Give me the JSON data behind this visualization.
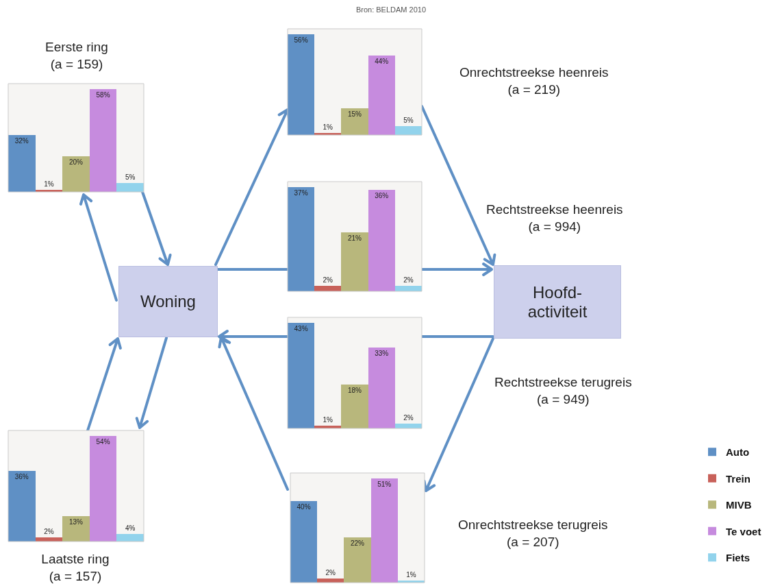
{
  "chart_data": [
    {
      "type": "bar",
      "title": "Eerste ring\n(a = 159)",
      "categories": [
        null
      ],
      "series": [
        {
          "color": "#5f90c5",
          "values": [
            32
          ],
          "value_labels": [
            "32%"
          ]
        },
        {
          "color": "#c8615a",
          "values": [
            1
          ],
          "value_labels": [
            "1%"
          ]
        },
        {
          "color": "#b8b77c",
          "values": [
            20
          ],
          "value_labels": [
            "20%"
          ]
        },
        {
          "color": "#c68bde",
          "values": [
            58
          ],
          "value_labels": [
            "58%"
          ]
        },
        {
          "color": "#92d3ec",
          "values": [
            5
          ],
          "value_labels": [
            "5%"
          ]
        }
      ]
    },
    {
      "type": "bar",
      "annotations": [
        "Onrechtstreekse heenreis\n(a = 219)"
      ],
      "categories": [
        null
      ],
      "series": [
        {
          "color": "#5f90c5",
          "values": [
            56
          ],
          "value_labels": [
            "56%"
          ]
        },
        {
          "color": "#c8615a",
          "values": [
            1
          ],
          "value_labels": [
            "1%"
          ]
        },
        {
          "color": "#b8b77c",
          "values": [
            15
          ],
          "value_labels": [
            "15%"
          ]
        },
        {
          "color": "#c68bde",
          "values": [
            44
          ],
          "value_labels": [
            "44%"
          ]
        },
        {
          "color": "#92d3ec",
          "values": [
            5
          ],
          "value_labels": [
            "5%"
          ]
        }
      ]
    },
    {
      "type": "bar",
      "annotations": [
        "Rechtstreekse heenreis\n(a = 994)"
      ],
      "categories": [
        null
      ],
      "series": [
        {
          "color": "#5f90c5",
          "values": [
            37
          ],
          "value_labels": [
            "37%"
          ]
        },
        {
          "color": "#c8615a",
          "values": [
            2
          ],
          "value_labels": [
            "2%"
          ]
        },
        {
          "color": "#b8b77c",
          "values": [
            21
          ],
          "value_labels": [
            "21%"
          ]
        },
        {
          "color": "#c68bde",
          "values": [
            36
          ],
          "value_labels": [
            "36%"
          ]
        },
        {
          "color": "#92d3ec",
          "values": [
            2
          ],
          "value_labels": [
            "2%"
          ]
        }
      ]
    },
    {
      "type": "bar",
      "annotations": [
        "Rechtstreekse terugreis\n(a = 949)"
      ],
      "categories": [
        null
      ],
      "series": [
        {
          "color": "#5f90c5",
          "values": [
            43
          ],
          "value_labels": [
            "43%"
          ]
        },
        {
          "color": "#c8615a",
          "values": [
            1
          ],
          "value_labels": [
            "1%"
          ]
        },
        {
          "color": "#b8b77c",
          "values": [
            18
          ],
          "value_labels": [
            "18%"
          ]
        },
        {
          "color": "#c68bde",
          "values": [
            33
          ],
          "value_labels": [
            "33%"
          ]
        },
        {
          "color": "#92d3ec",
          "values": [
            2
          ],
          "value_labels": [
            "2%"
          ]
        }
      ]
    },
    {
      "type": "bar",
      "title": "Laatste ring\n(a = 157)",
      "categories": [
        null
      ],
      "series": [
        {
          "color": "#5f90c5",
          "values": [
            36
          ],
          "value_labels": [
            "36%"
          ]
        },
        {
          "color": "#c8615a",
          "values": [
            2
          ],
          "value_labels": [
            "2%"
          ]
        },
        {
          "color": "#b8b77c",
          "values": [
            13
          ],
          "value_labels": [
            "13%"
          ]
        },
        {
          "color": "#c68bde",
          "values": [
            54
          ],
          "value_labels": [
            "54%"
          ]
        },
        {
          "color": "#92d3ec",
          "values": [
            4
          ],
          "value_labels": [
            "4%"
          ]
        }
      ]
    },
    {
      "type": "bar",
      "annotations": [
        "Onrechtstreekse terugreis\n(a = 207)"
      ],
      "categories": [
        null
      ],
      "legend": "right",
      "series": [
        {
          "name": "Auto",
          "color": "#5f90c5",
          "values": [
            40
          ],
          "value_labels": [
            "40%"
          ]
        },
        {
          "name": "Trein",
          "color": "#c8615a",
          "values": [
            2
          ],
          "value_labels": [
            "2%"
          ]
        },
        {
          "name": "MIVB",
          "color": "#b8b77c",
          "values": [
            22
          ],
          "value_labels": [
            "22%"
          ]
        },
        {
          "name": "Te voet",
          "color": "#c68bde",
          "values": [
            51
          ],
          "value_labels": [
            "51%"
          ]
        },
        {
          "name": "Fiets",
          "color": "#92d3ec",
          "values": [
            1
          ],
          "value_labels": [
            "1%"
          ]
        }
      ]
    },
    {
      "type": "other",
      "annotations": [
        "Bron: BELDAM 2010",
        "Woning",
        "Hoofd-\nactiviteit"
      ]
    }
  ]
}
